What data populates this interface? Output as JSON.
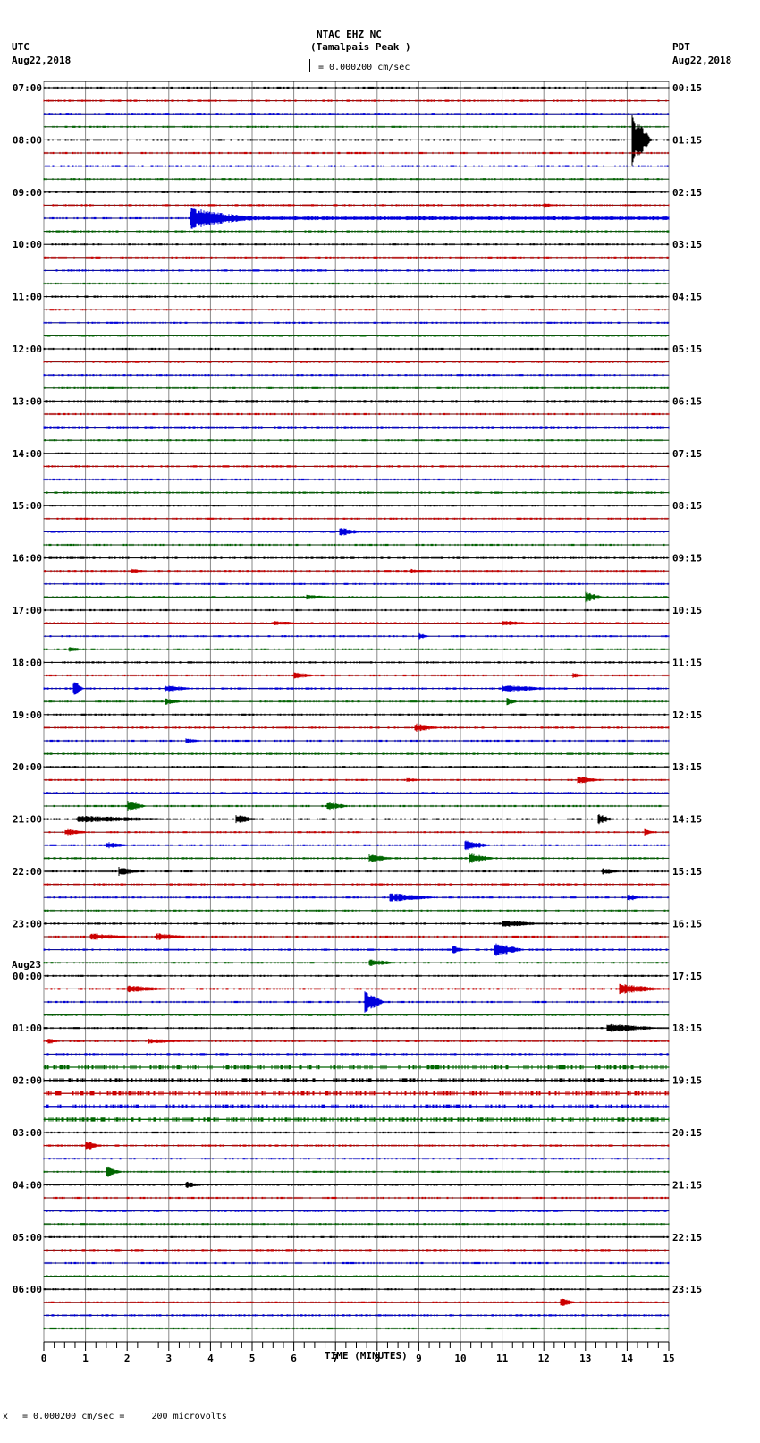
{
  "header": {
    "station": "NTAC EHZ NC",
    "location": "(Tamalpais Peak )",
    "left_tz": "UTC",
    "left_date": "Aug22,2018",
    "right_tz": "PDT",
    "right_date": "Aug22,2018",
    "scale_text": "= 0.000200 cm/sec"
  },
  "footer": {
    "scale_text": "= 0.000200 cm/sec =     200 microvolts"
  },
  "colors": {
    "trace_cycle": [
      "#000000",
      "#cc0000",
      "#0000dd",
      "#006600"
    ],
    "grid": "#888888",
    "baseline": "#000000"
  },
  "chart_data": {
    "type": "seismogram",
    "title": "NTAC EHZ NC (Tamalpais Peak )",
    "xlabel": "TIME (MINUTES)",
    "xlim": [
      0,
      15
    ],
    "x_ticks": [
      0,
      1,
      2,
      3,
      4,
      5,
      6,
      7,
      8,
      9,
      10,
      11,
      12,
      13,
      14,
      15
    ],
    "traces_per_hour": 4,
    "trace_count": 96,
    "left_labels": [
      {
        "row": 0,
        "text": "07:00"
      },
      {
        "row": 4,
        "text": "08:00"
      },
      {
        "row": 8,
        "text": "09:00"
      },
      {
        "row": 12,
        "text": "10:00"
      },
      {
        "row": 16,
        "text": "11:00"
      },
      {
        "row": 20,
        "text": "12:00"
      },
      {
        "row": 24,
        "text": "13:00"
      },
      {
        "row": 28,
        "text": "14:00"
      },
      {
        "row": 32,
        "text": "15:00"
      },
      {
        "row": 36,
        "text": "16:00"
      },
      {
        "row": 40,
        "text": "17:00"
      },
      {
        "row": 44,
        "text": "18:00"
      },
      {
        "row": 48,
        "text": "19:00"
      },
      {
        "row": 52,
        "text": "20:00"
      },
      {
        "row": 56,
        "text": "21:00"
      },
      {
        "row": 60,
        "text": "22:00"
      },
      {
        "row": 64,
        "text": "23:00"
      },
      {
        "row": 68,
        "text": "00:00",
        "date": "Aug23"
      },
      {
        "row": 72,
        "text": "01:00"
      },
      {
        "row": 76,
        "text": "02:00"
      },
      {
        "row": 80,
        "text": "03:00"
      },
      {
        "row": 84,
        "text": "04:00"
      },
      {
        "row": 88,
        "text": "05:00"
      },
      {
        "row": 92,
        "text": "06:00"
      }
    ],
    "right_labels": [
      {
        "row": 0,
        "text": "00:15"
      },
      {
        "row": 4,
        "text": "01:15"
      },
      {
        "row": 8,
        "text": "02:15"
      },
      {
        "row": 12,
        "text": "03:15"
      },
      {
        "row": 16,
        "text": "04:15"
      },
      {
        "row": 20,
        "text": "05:15"
      },
      {
        "row": 24,
        "text": "06:15"
      },
      {
        "row": 28,
        "text": "07:15"
      },
      {
        "row": 32,
        "text": "08:15"
      },
      {
        "row": 36,
        "text": "09:15"
      },
      {
        "row": 40,
        "text": "10:15"
      },
      {
        "row": 44,
        "text": "11:15"
      },
      {
        "row": 48,
        "text": "12:15"
      },
      {
        "row": 52,
        "text": "13:15"
      },
      {
        "row": 56,
        "text": "14:15"
      },
      {
        "row": 60,
        "text": "15:15"
      },
      {
        "row": 64,
        "text": "16:15"
      },
      {
        "row": 68,
        "text": "17:15"
      },
      {
        "row": 72,
        "text": "18:15"
      },
      {
        "row": 76,
        "text": "19:15"
      },
      {
        "row": 80,
        "text": "20:15"
      },
      {
        "row": 84,
        "text": "21:15"
      },
      {
        "row": 88,
        "text": "22:15"
      },
      {
        "row": 92,
        "text": "23:15"
      }
    ],
    "events": [
      {
        "row": 4,
        "minute": 14.1,
        "amp": 30,
        "dur": 0.5,
        "note": "large local event"
      },
      {
        "row": 9,
        "minute": 12.0,
        "amp": 3,
        "dur": 0.3
      },
      {
        "row": 10,
        "minute": 3.5,
        "amp": 14,
        "dur": 11.5,
        "decay": true,
        "note": "teleseism/regional coda"
      },
      {
        "row": 34,
        "minute": 7.1,
        "amp": 5,
        "dur": 0.6
      },
      {
        "row": 37,
        "minute": 2.1,
        "amp": 3,
        "dur": 0.4
      },
      {
        "row": 37,
        "minute": 8.8,
        "amp": 2.5,
        "dur": 0.5
      },
      {
        "row": 39,
        "minute": 6.3,
        "amp": 3,
        "dur": 0.8
      },
      {
        "row": 39,
        "minute": 13.0,
        "amp": 6,
        "dur": 0.5
      },
      {
        "row": 41,
        "minute": 5.5,
        "amp": 3,
        "dur": 0.8
      },
      {
        "row": 41,
        "minute": 11.0,
        "amp": 3,
        "dur": 0.9
      },
      {
        "row": 42,
        "minute": 9.0,
        "amp": 4,
        "dur": 0.3
      },
      {
        "row": 43,
        "minute": 0.6,
        "amp": 3,
        "dur": 0.5
      },
      {
        "row": 45,
        "minute": 6.0,
        "amp": 4,
        "dur": 0.6
      },
      {
        "row": 45,
        "minute": 12.7,
        "amp": 3,
        "dur": 0.4
      },
      {
        "row": 46,
        "minute": 0.7,
        "amp": 9,
        "dur": 0.3
      },
      {
        "row": 46,
        "minute": 2.9,
        "amp": 4,
        "dur": 0.8
      },
      {
        "row": 46,
        "minute": 11.0,
        "amp": 4,
        "dur": 1.5
      },
      {
        "row": 47,
        "minute": 2.9,
        "amp": 4,
        "dur": 0.5
      },
      {
        "row": 47,
        "minute": 11.1,
        "amp": 5,
        "dur": 0.3
      },
      {
        "row": 49,
        "minute": 8.9,
        "amp": 5,
        "dur": 0.7
      },
      {
        "row": 50,
        "minute": 3.4,
        "amp": 3,
        "dur": 0.5
      },
      {
        "row": 53,
        "minute": 8.7,
        "amp": 3,
        "dur": 0.4
      },
      {
        "row": 53,
        "minute": 12.8,
        "amp": 5,
        "dur": 0.6
      },
      {
        "row": 55,
        "minute": 2.0,
        "amp": 7,
        "dur": 0.5
      },
      {
        "row": 55,
        "minute": 6.8,
        "amp": 5,
        "dur": 0.6
      },
      {
        "row": 56,
        "minute": 0.8,
        "amp": 4,
        "dur": 2.8
      },
      {
        "row": 56,
        "minute": 4.6,
        "amp": 6,
        "dur": 0.5
      },
      {
        "row": 56,
        "minute": 13.3,
        "amp": 6,
        "dur": 0.4
      },
      {
        "row": 57,
        "minute": 0.5,
        "amp": 4,
        "dur": 0.7
      },
      {
        "row": 57,
        "minute": 14.4,
        "amp": 4,
        "dur": 0.3
      },
      {
        "row": 58,
        "minute": 1.5,
        "amp": 4,
        "dur": 0.6
      },
      {
        "row": 58,
        "minute": 10.1,
        "amp": 6,
        "dur": 0.7
      },
      {
        "row": 59,
        "minute": 7.8,
        "amp": 5,
        "dur": 0.7
      },
      {
        "row": 59,
        "minute": 10.2,
        "amp": 6,
        "dur": 0.7
      },
      {
        "row": 60,
        "minute": 1.8,
        "amp": 5,
        "dur": 0.6
      },
      {
        "row": 60,
        "minute": 13.4,
        "amp": 4,
        "dur": 0.5
      },
      {
        "row": 62,
        "minute": 8.3,
        "amp": 5,
        "dur": 1.3
      },
      {
        "row": 62,
        "minute": 14.0,
        "amp": 5,
        "dur": 0.4
      },
      {
        "row": 64,
        "minute": 11.0,
        "amp": 4,
        "dur": 1.2
      },
      {
        "row": 65,
        "minute": 1.1,
        "amp": 4,
        "dur": 1.2
      },
      {
        "row": 65,
        "minute": 2.7,
        "amp": 4,
        "dur": 0.9
      },
      {
        "row": 66,
        "minute": 9.8,
        "amp": 5,
        "dur": 0.4
      },
      {
        "row": 66,
        "minute": 10.8,
        "amp": 8,
        "dur": 0.8
      },
      {
        "row": 67,
        "minute": 7.8,
        "amp": 4,
        "dur": 0.8
      },
      {
        "row": 69,
        "minute": 13.8,
        "amp": 6,
        "dur": 1.2
      },
      {
        "row": 69,
        "minute": 2.0,
        "amp": 4,
        "dur": 1.2
      },
      {
        "row": 70,
        "minute": 7.7,
        "amp": 12,
        "dur": 0.5
      },
      {
        "row": 72,
        "minute": 13.5,
        "amp": 5,
        "dur": 1.5
      },
      {
        "row": 73,
        "minute": 0.1,
        "amp": 4,
        "dur": 0.3
      },
      {
        "row": 73,
        "minute": 2.5,
        "amp": 3,
        "dur": 1.2
      },
      {
        "row": 81,
        "minute": 1.0,
        "amp": 6,
        "dur": 0.4
      },
      {
        "row": 83,
        "minute": 1.5,
        "amp": 7,
        "dur": 0.4
      },
      {
        "row": 84,
        "minute": 3.4,
        "amp": 4,
        "dur": 0.5
      },
      {
        "row": 93,
        "minute": 12.4,
        "amp": 5,
        "dur": 0.4
      }
    ],
    "noisy_rows": [
      76,
      77,
      78,
      79,
      75
    ]
  }
}
